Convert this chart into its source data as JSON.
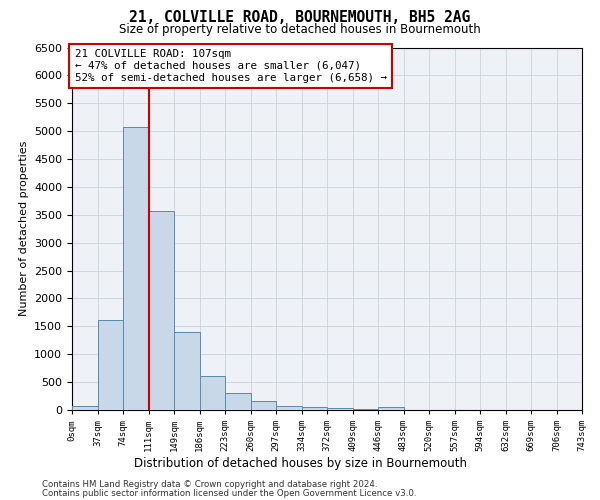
{
  "title": "21, COLVILLE ROAD, BOURNEMOUTH, BH5 2AG",
  "subtitle": "Size of property relative to detached houses in Bournemouth",
  "xlabel": "Distribution of detached houses by size in Bournemouth",
  "ylabel": "Number of detached properties",
  "footer_line1": "Contains HM Land Registry data © Crown copyright and database right 2024.",
  "footer_line2": "Contains public sector information licensed under the Open Government Licence v3.0.",
  "bar_color": "#c8d8e8",
  "bar_edge_color": "#5a8ab0",
  "grid_color": "#c8d4e0",
  "annotation_box_color": "#cc0000",
  "property_line_color": "#cc0000",
  "annotation_text_line1": "21 COLVILLE ROAD: 107sqm",
  "annotation_text_line2": "← 47% of detached houses are smaller (6,047)",
  "annotation_text_line3": "52% of semi-detached houses are larger (6,658) →",
  "property_size": 107,
  "bin_labels": [
    "0sqm",
    "37sqm",
    "74sqm",
    "111sqm",
    "149sqm",
    "186sqm",
    "223sqm",
    "260sqm",
    "297sqm",
    "334sqm",
    "372sqm",
    "409sqm",
    "446sqm",
    "483sqm",
    "520sqm",
    "557sqm",
    "594sqm",
    "632sqm",
    "669sqm",
    "706sqm",
    "743sqm"
  ],
  "bar_heights": [
    75,
    1620,
    5080,
    3560,
    1400,
    610,
    305,
    155,
    80,
    45,
    30,
    20,
    55,
    5,
    5,
    3,
    2,
    2,
    1,
    0
  ],
  "ylim": [
    0,
    6500
  ],
  "yticks": [
    0,
    500,
    1000,
    1500,
    2000,
    2500,
    3000,
    3500,
    4000,
    4500,
    5000,
    5500,
    6000,
    6500
  ],
  "background_color": "#ffffff",
  "plot_bg_color": "#eef2f7"
}
